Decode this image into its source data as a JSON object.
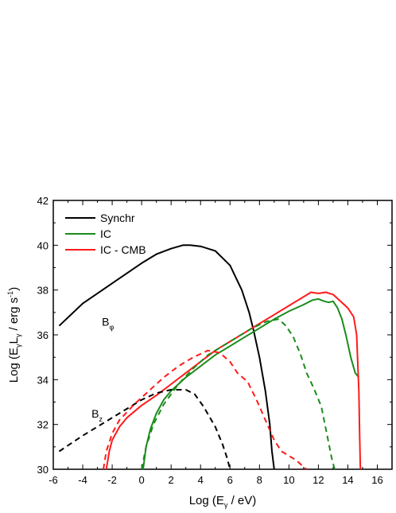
{
  "colors": {
    "black": "#000000",
    "green": "#1a8c1a",
    "red": "#ff1a1a"
  },
  "chart_data": {
    "type": "line",
    "xlabel": {
      "prefix": "Log (E",
      "sub": "γ",
      "suffix": " / eV)"
    },
    "ylabel": {
      "prefix": "Log (E",
      "sub1": "γ",
      "mid": "L",
      "sub2": "γ",
      "unit": " / erg s",
      "sup": "-1",
      "close": ")"
    },
    "xlim": [
      -6,
      17
    ],
    "ylim": [
      30,
      42
    ],
    "xticks": [
      "-6",
      "-4",
      "-2",
      "0",
      "2",
      "4",
      "6",
      "8",
      "10",
      "12",
      "14",
      "16"
    ],
    "yticks": [
      "30",
      "32",
      "34",
      "36",
      "38",
      "40",
      "42"
    ],
    "grid": false,
    "legend_position": "top-left",
    "legend": [
      {
        "label": "Synchr",
        "color": "#000000"
      },
      {
        "label": "IC",
        "color": "#1a8c1a"
      },
      {
        "label": "IC - CMB",
        "color": "#ff1a1a"
      }
    ],
    "annotations": [
      {
        "main": "B",
        "sub": "φ",
        "x": -2.7,
        "y": 36.4
      },
      {
        "main": "B",
        "sub": "z",
        "x": -3.4,
        "y": 32.3
      }
    ],
    "series": [
      {
        "name": "Synchr",
        "group": "B_phi",
        "color": "#000000",
        "dash": "solid",
        "x": [
          -5.6,
          -4,
          -2,
          0,
          1,
          2,
          2.8,
          3.3,
          4,
          5,
          6,
          6.8,
          7.3,
          7.6,
          8,
          8.4,
          8.7,
          8.85,
          9
        ],
        "y": [
          36.4,
          37.4,
          38.3,
          39.2,
          39.6,
          39.85,
          40.0,
          40.0,
          39.95,
          39.75,
          39.1,
          38.0,
          37.0,
          36.2,
          35.0,
          33.5,
          32.0,
          30.8,
          30.0
        ]
      },
      {
        "name": "IC",
        "group": "B_phi",
        "color": "#1a8c1a",
        "dash": "solid",
        "x": [
          0.1,
          0.3,
          0.6,
          1,
          1.5,
          2,
          3,
          4,
          5,
          6,
          7,
          8,
          9,
          10,
          11,
          11.6,
          12,
          12.4,
          12.7,
          13.0,
          13.3,
          13.6,
          13.9,
          14.2,
          14.5,
          14.75
        ],
        "y": [
          30.0,
          31.0,
          31.8,
          32.5,
          33.1,
          33.5,
          34.1,
          34.6,
          35.1,
          35.5,
          35.9,
          36.3,
          36.7,
          37.05,
          37.35,
          37.55,
          37.6,
          37.5,
          37.45,
          37.5,
          37.2,
          36.7,
          35.9,
          35.0,
          34.3,
          34.1
        ]
      },
      {
        "name": "IC - CMB",
        "group": "B_phi",
        "color": "#ff1a1a",
        "dash": "solid",
        "x": [
          -2.4,
          -2.2,
          -2,
          -1.5,
          -1,
          0,
          1,
          2,
          3,
          4,
          5,
          6,
          7,
          8,
          9,
          10,
          11,
          11.5,
          12,
          12.5,
          13,
          13.5,
          14,
          14.4,
          14.6,
          14.75,
          14.8,
          14.85
        ],
        "y": [
          30.0,
          30.8,
          31.3,
          31.9,
          32.3,
          32.85,
          33.3,
          33.8,
          34.3,
          34.8,
          35.3,
          35.7,
          36.1,
          36.5,
          36.9,
          37.3,
          37.7,
          37.9,
          37.85,
          37.9,
          37.8,
          37.5,
          37.2,
          36.8,
          36.0,
          33.5,
          31.5,
          30.0
        ]
      },
      {
        "name": "Synchr",
        "group": "B_z",
        "color": "#000000",
        "dash": "dashed",
        "x": [
          -5.6,
          -4,
          -2,
          0,
          1,
          2,
          3,
          3.6,
          4.2,
          5,
          5.5,
          5.8,
          6
        ],
        "y": [
          30.8,
          31.5,
          32.3,
          33.1,
          33.4,
          33.55,
          33.55,
          33.35,
          32.8,
          31.9,
          31.1,
          30.5,
          30.0
        ]
      },
      {
        "name": "IC",
        "group": "B_z",
        "color": "#1a8c1a",
        "dash": "dashed",
        "x": [
          0,
          0.3,
          0.8,
          1.5,
          2.5,
          3.5,
          4.5,
          5.5,
          6.5,
          7.5,
          8.5,
          9.3,
          9.8,
          10.3,
          10.8,
          11.2,
          11.7,
          12.2,
          12.6,
          12.9,
          13.1
        ],
        "y": [
          30.0,
          31.0,
          32.0,
          32.9,
          33.8,
          34.5,
          35.1,
          35.5,
          35.9,
          36.3,
          36.6,
          36.7,
          36.4,
          35.9,
          35.1,
          34.3,
          33.6,
          32.8,
          31.5,
          30.5,
          30.0
        ]
      },
      {
        "name": "IC - CMB",
        "group": "B_z",
        "color": "#ff1a1a",
        "dash": "dashed",
        "x": [
          -2.6,
          -2.4,
          -2,
          -1.5,
          -0.5,
          0.5,
          1.5,
          2.5,
          3.5,
          4.5,
          5.3,
          6,
          6.5,
          7.2,
          7.8,
          8.4,
          9,
          9.5,
          10,
          10.5,
          11,
          11.2
        ],
        "y": [
          30.0,
          30.8,
          31.6,
          32.2,
          32.9,
          33.5,
          34.1,
          34.6,
          35.0,
          35.3,
          35.2,
          34.8,
          34.3,
          33.9,
          33.1,
          32.2,
          31.3,
          30.8,
          30.6,
          30.4,
          30.1,
          30.0
        ]
      }
    ]
  }
}
